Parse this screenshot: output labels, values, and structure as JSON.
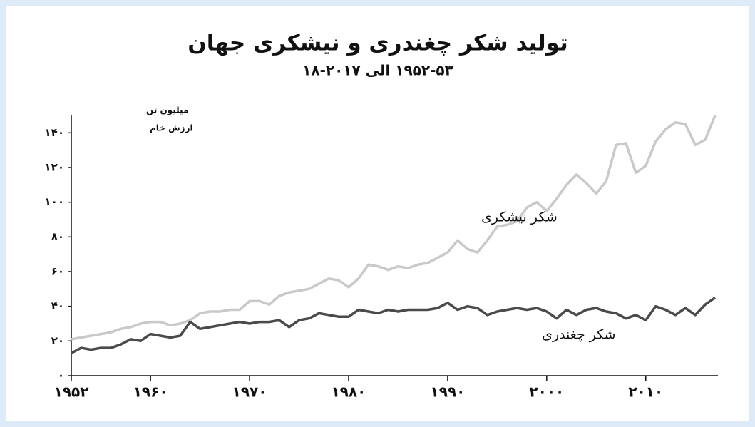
{
  "chart_data": {
    "type": "line",
    "title": "تولید شکر چغندری و نیشکری جهان",
    "subtitle": "۱۹۵۲-۵۳ الی ۲۰۱۷-۱۸",
    "ylabel": [
      "میلیون تن",
      "ارزش خام"
    ],
    "x": [
      1952,
      1953,
      1954,
      1955,
      1956,
      1957,
      1958,
      1959,
      1960,
      1961,
      1962,
      1963,
      1964,
      1965,
      1966,
      1967,
      1968,
      1969,
      1970,
      1971,
      1972,
      1973,
      1974,
      1975,
      1976,
      1977,
      1978,
      1979,
      1980,
      1981,
      1982,
      1983,
      1984,
      1985,
      1986,
      1987,
      1988,
      1989,
      1990,
      1991,
      1992,
      1993,
      1994,
      1995,
      1996,
      1997,
      1998,
      1999,
      2000,
      2001,
      2002,
      2003,
      2004,
      2005,
      2006,
      2007,
      2008,
      2009,
      2010,
      2011,
      2012,
      2013,
      2014,
      2015,
      2016,
      2017
    ],
    "series": [
      {
        "name": "شکر نیشکری",
        "color": "#c9c9c9",
        "values": [
          21,
          22,
          23,
          24,
          25,
          27,
          28,
          30,
          31,
          31,
          29,
          30,
          32,
          36,
          37,
          37,
          38,
          38,
          43,
          43,
          41,
          46,
          48,
          49,
          50,
          53,
          56,
          55,
          51,
          56,
          64,
          63,
          61,
          63,
          62,
          64,
          65,
          68,
          71,
          78,
          73,
          71,
          78,
          86,
          87,
          89,
          97,
          100,
          95,
          102,
          110,
          116,
          111,
          105,
          112,
          133,
          134,
          117,
          121,
          135,
          142,
          146,
          145,
          133,
          136,
          150
        ]
      },
      {
        "name": "شکر چغندری",
        "color": "#4a4a4a",
        "values": [
          13,
          16,
          15,
          16,
          16,
          18,
          21,
          20,
          24,
          23,
          22,
          23,
          31,
          27,
          28,
          29,
          30,
          31,
          30,
          31,
          31,
          32,
          28,
          32,
          33,
          36,
          35,
          34,
          34,
          38,
          37,
          36,
          38,
          37,
          38,
          38,
          38,
          39,
          42,
          38,
          40,
          39,
          35,
          37,
          38,
          39,
          38,
          39,
          37,
          33,
          38,
          35,
          38,
          39,
          37,
          36,
          33,
          35,
          32,
          40,
          38,
          35,
          39,
          35,
          41,
          45
        ]
      }
    ],
    "xlim": [
      1952,
      2017
    ],
    "xticks": [
      {
        "value": 1952,
        "label": "۱۹۵۲"
      },
      {
        "value": 1960,
        "label": "۱۹۶۰"
      },
      {
        "value": 1970,
        "label": "۱۹۷۰"
      },
      {
        "value": 1980,
        "label": "۱۹۸۰"
      },
      {
        "value": 1990,
        "label": "۱۹۹۰"
      },
      {
        "value": 2000,
        "label": "۲۰۰۰"
      },
      {
        "value": 2010,
        "label": "۲۰۱۰"
      }
    ],
    "ylim": [
      0,
      150
    ],
    "yticks": [
      {
        "value": 0,
        "label": "۰"
      },
      {
        "value": 20,
        "label": "۲۰"
      },
      {
        "value": 40,
        "label": "۴۰"
      },
      {
        "value": 60,
        "label": "۶۰"
      },
      {
        "value": 80,
        "label": "۸۰"
      },
      {
        "value": 100,
        "label": "۱۰۰"
      },
      {
        "value": 120,
        "label": "۱۲۰"
      },
      {
        "value": 140,
        "label": "۱۴۰"
      }
    ]
  }
}
